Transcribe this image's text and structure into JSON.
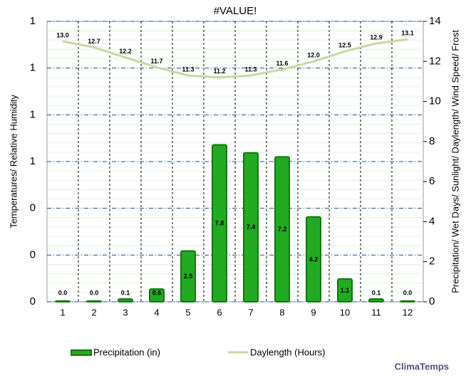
{
  "chart_data": {
    "type": "bar-line",
    "title": "#VALUE!",
    "ylabel": "Temperatures/ Relative Humidity",
    "y2label": "Precipitation/ Wet Days/ Sunlight/ Daylength/ Wind Speed/ Frost",
    "categories": [
      "1",
      "2",
      "3",
      "4",
      "5",
      "6",
      "7",
      "8",
      "9",
      "10",
      "11",
      "12"
    ],
    "ylim": [
      0,
      1.2
    ],
    "yticks": [
      0,
      {
        "value": 0.2,
        "label": "0"
      },
      {
        "value": 0.4,
        "label": "0"
      },
      {
        "value": 0.6,
        "label": "1"
      },
      {
        "value": 0.8,
        "label": "1"
      },
      {
        "value": 1.0,
        "label": "1"
      },
      {
        "value": 1.2,
        "label": "1"
      }
    ],
    "y2lim": [
      0,
      14
    ],
    "y2ticks": [
      0,
      2,
      4,
      6,
      8,
      10,
      12,
      14
    ],
    "series": [
      {
        "name": "Precipitation (in)",
        "type": "bar",
        "axis": "y2",
        "color": "#22aa22",
        "values": [
          0.0,
          0.0,
          0.1,
          0.6,
          2.5,
          7.8,
          7.4,
          7.2,
          4.2,
          1.1,
          0.1,
          0.0
        ],
        "value_labels": [
          "0.0",
          "0.0",
          "0.1",
          "0.6",
          "2.5",
          "7.8",
          "7.4",
          "7.2",
          "4.2",
          "1.1",
          "0.1",
          "0.0"
        ]
      },
      {
        "name": "Daylength (Hours)",
        "type": "line",
        "axis": "y2",
        "color": "#c8d8a0",
        "values": [
          13.0,
          12.7,
          12.2,
          11.7,
          11.3,
          11.2,
          11.3,
          11.6,
          12.0,
          12.5,
          12.9,
          13.1
        ],
        "value_labels": [
          "13.0",
          "12.7",
          "12.2",
          "11.7",
          "11.3",
          "11.2",
          "11.3",
          "11.6",
          "12.0",
          "12.5",
          "12.9",
          "13.1"
        ]
      }
    ],
    "source": "ClimaTemps"
  }
}
